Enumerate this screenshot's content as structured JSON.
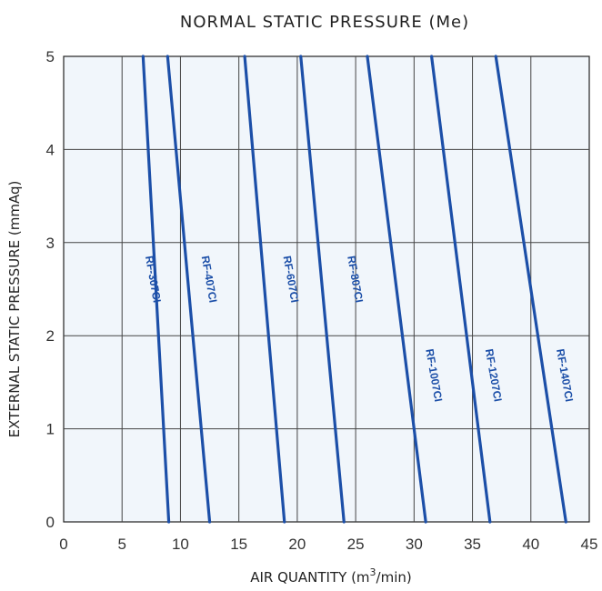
{
  "chart_data": {
    "type": "line",
    "title": "NORMAL STATIC PRESSURE (Me)",
    "xlabel": "AIR QUANTITY (m3/min)",
    "xlabel_main": "AIR QUANTITY (m",
    "xlabel_sup": "3",
    "xlabel_tail": "/min)",
    "ylabel": "EXTERNAL STATIC PRESSURE (mmAq)",
    "xlim": [
      0,
      45
    ],
    "ylim": [
      0,
      5
    ],
    "x_ticks": [
      "0",
      "5",
      "10",
      "15",
      "20",
      "25",
      "30",
      "35",
      "40",
      "45"
    ],
    "y_ticks": [
      "0",
      "1",
      "2",
      "3",
      "4",
      "5"
    ],
    "grid": true,
    "line_color": "#1c4fa8",
    "series": [
      {
        "name": "RF-307CI",
        "points": [
          [
            6.8,
            5
          ],
          [
            9.0,
            0
          ]
        ],
        "label_at": [
          7.0,
          2.85
        ]
      },
      {
        "name": "RF-407CI",
        "points": [
          [
            8.9,
            5
          ],
          [
            12.5,
            0
          ]
        ],
        "label_at": [
          11.8,
          2.85
        ]
      },
      {
        "name": "RF-607CI",
        "points": [
          [
            15.5,
            5
          ],
          [
            18.9,
            0
          ]
        ],
        "label_at": [
          18.8,
          2.85
        ]
      },
      {
        "name": "RF-807CI",
        "points": [
          [
            20.3,
            5
          ],
          [
            24.0,
            0
          ]
        ],
        "label_at": [
          24.3,
          2.85
        ]
      },
      {
        "name": "RF-1007CI",
        "points": [
          [
            26.0,
            5
          ],
          [
            31.0,
            0
          ]
        ],
        "label_at": [
          31.0,
          1.85
        ]
      },
      {
        "name": "RF-1207CI",
        "points": [
          [
            31.5,
            5
          ],
          [
            36.5,
            0
          ]
        ],
        "label_at": [
          36.1,
          1.85
        ]
      },
      {
        "name": "RF-1407CI",
        "points": [
          [
            37.0,
            5
          ],
          [
            43.0,
            0
          ]
        ],
        "label_at": [
          42.2,
          1.85
        ]
      }
    ]
  }
}
